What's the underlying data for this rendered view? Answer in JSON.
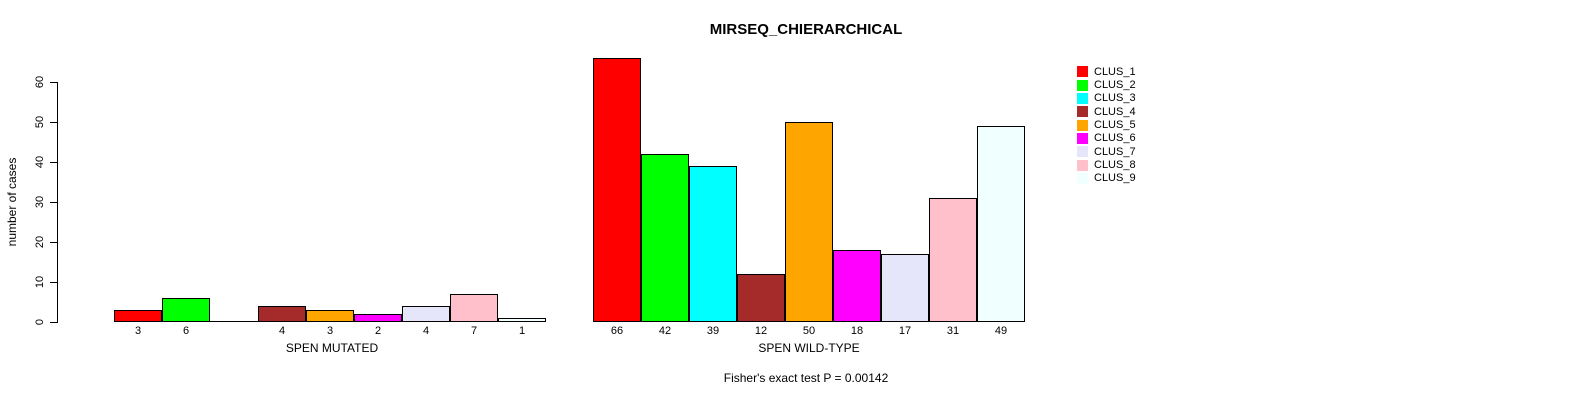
{
  "chart_data": {
    "type": "bar",
    "title": "MIRSEQ_CHIERARCHICAL",
    "ylabel": "number of cases",
    "xlabel": "",
    "ylim": [
      0,
      66
    ],
    "y_ticks": [
      0,
      10,
      20,
      30,
      40,
      50,
      60
    ],
    "grid": false,
    "legend_position": "topright",
    "categories": [
      "CLUS_1",
      "CLUS_2",
      "CLUS_3",
      "CLUS_4",
      "CLUS_5",
      "CLUS_6",
      "CLUS_7",
      "CLUS_8",
      "CLUS_9"
    ],
    "colors": [
      "#FF0000",
      "#00FF00",
      "#00FFFF",
      "#A52A2A",
      "#FFA500",
      "#FF00FF",
      "#E6E6FA",
      "#FFC0CB",
      "#F0FFFF"
    ],
    "series": [
      {
        "name": "SPEN MUTATED",
        "values": [
          3,
          6,
          0,
          4,
          3,
          2,
          4,
          7,
          1
        ]
      },
      {
        "name": "SPEN WILD-TYPE",
        "values": [
          66,
          42,
          39,
          12,
          50,
          18,
          17,
          31,
          49
        ]
      }
    ],
    "annotation": "Fisher's exact test P = 0.00142"
  },
  "legend": {
    "items": [
      {
        "label": "CLUS_1",
        "color": "#FF0000"
      },
      {
        "label": "CLUS_2",
        "color": "#00FF00"
      },
      {
        "label": "CLUS_3",
        "color": "#00FFFF"
      },
      {
        "label": "CLUS_4",
        "color": "#A52A2A"
      },
      {
        "label": "CLUS_5",
        "color": "#FFA500"
      },
      {
        "label": "CLUS_6",
        "color": "#FF00FF"
      },
      {
        "label": "CLUS_7",
        "color": "#E6E6FA"
      },
      {
        "label": "CLUS_8",
        "color": "#FFC0CB"
      },
      {
        "label": "CLUS_9",
        "color": "#F0FFFF"
      }
    ]
  }
}
